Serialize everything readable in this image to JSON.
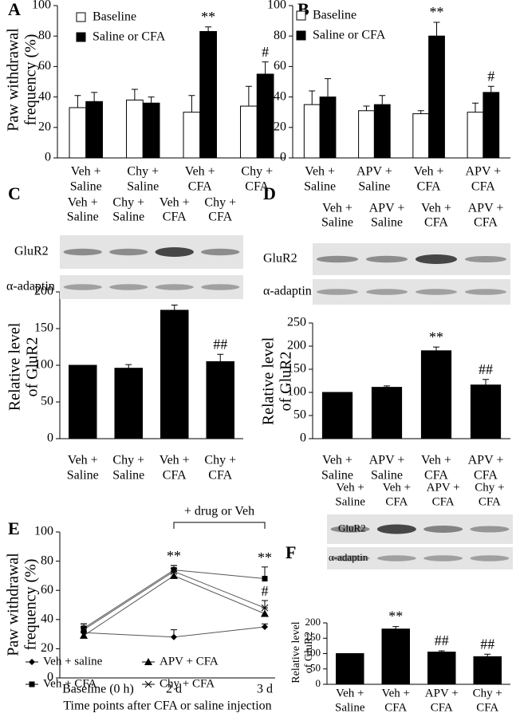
{
  "chart_data": [
    {
      "panel": "A",
      "type": "bar",
      "categories": [
        [
          "Veh +",
          "Saline"
        ],
        [
          "Chy +",
          "Saline"
        ],
        [
          "Veh +",
          "CFA"
        ],
        [
          "Chy +",
          "CFA"
        ]
      ],
      "y_label": [
        "Paw withdrawal",
        "frequency (%)"
      ],
      "ylim": [
        0,
        100
      ],
      "yticks": [
        0,
        20,
        40,
        60,
        80,
        100
      ],
      "series": [
        {
          "name": "Baseline",
          "color": "#ffffff",
          "values": [
            33,
            38,
            30,
            34
          ],
          "errors": [
            8,
            7,
            11,
            13
          ]
        },
        {
          "name": "Saline or CFA",
          "color": "#000000",
          "values": [
            37,
            36,
            83,
            55
          ],
          "errors": [
            6,
            4,
            3,
            8
          ],
          "annotations": [
            null,
            null,
            "**",
            "#"
          ]
        }
      ]
    },
    {
      "panel": "B",
      "type": "bar",
      "categories": [
        [
          "Veh +",
          "Saline"
        ],
        [
          "APV +",
          "Saline"
        ],
        [
          "Veh +",
          "CFA"
        ],
        [
          "APV +",
          "CFA"
        ]
      ],
      "ylim": [
        0,
        100
      ],
      "yticks": [
        0,
        20,
        40,
        60,
        80,
        100
      ],
      "series": [
        {
          "name": "Baseline",
          "color": "#ffffff",
          "values": [
            35,
            31,
            29,
            30
          ],
          "errors": [
            9,
            3,
            2,
            6
          ]
        },
        {
          "name": "Saline or CFA",
          "color": "#000000",
          "values": [
            40,
            35,
            80,
            43
          ],
          "errors": [
            12,
            6,
            9,
            4
          ],
          "annotations": [
            null,
            null,
            "**",
            "#"
          ]
        }
      ]
    },
    {
      "panel": "C",
      "type": "bar",
      "blot_rows": [
        "GluR2",
        "α-adaptin"
      ],
      "categories": [
        [
          "Veh +",
          "Saline"
        ],
        [
          "Chy +",
          "Saline"
        ],
        [
          "Veh +",
          "CFA"
        ],
        [
          "Chy +",
          "CFA"
        ]
      ],
      "y_label": [
        "Relative level",
        "of GluR2"
      ],
      "ylim": [
        0,
        200
      ],
      "yticks": [
        0,
        50,
        100,
        150,
        200
      ],
      "series": [
        {
          "color": "#000000",
          "values": [
            100,
            96,
            175,
            105
          ],
          "errors": [
            0,
            5,
            7,
            10
          ],
          "annotations": [
            null,
            null,
            "**",
            "##"
          ]
        }
      ]
    },
    {
      "panel": "D",
      "type": "bar",
      "blot_rows": [
        "GluR2",
        "α-adaptin"
      ],
      "categories": [
        [
          "Veh +",
          "Saline"
        ],
        [
          "APV +",
          "Saline"
        ],
        [
          "Veh +",
          "CFA"
        ],
        [
          "APV +",
          "CFA"
        ]
      ],
      "y_label": [
        "Relative level",
        "of GluR2"
      ],
      "ylim": [
        0,
        250
      ],
      "yticks": [
        0,
        50,
        100,
        150,
        200,
        250
      ],
      "series": [
        {
          "color": "#000000",
          "values": [
            100,
            111,
            190,
            116
          ],
          "errors": [
            0,
            3,
            8,
            12
          ],
          "annotations": [
            null,
            null,
            "**",
            "##"
          ]
        }
      ]
    },
    {
      "panel": "E",
      "type": "line",
      "categories": [
        "Baseline (0 h)",
        "2 d",
        "3 d"
      ],
      "x_label": "Time points after CFA or saline injection",
      "y_label": [
        "Paw withdrawal",
        "frequency (%)"
      ],
      "annotation": "+ drug or Veh",
      "ylim": [
        0,
        100
      ],
      "yticks": [
        0,
        20,
        40,
        60,
        80,
        100
      ],
      "series": [
        {
          "name": "Veh + saline",
          "color": "#000000",
          "marker": "diamond",
          "values": [
            31,
            28,
            35
          ],
          "errors": [
            3,
            5,
            2
          ]
        },
        {
          "name": "Veh + CFA",
          "color": "#000000",
          "marker": "square",
          "values": [
            34,
            74,
            68
          ],
          "errors": [
            3,
            3,
            8
          ],
          "annotations": [
            null,
            "**",
            "**"
          ]
        },
        {
          "name": "APV + CFA",
          "color": "#000000",
          "marker": "triangle",
          "values": [
            29,
            70,
            44
          ],
          "errors": [
            3,
            3,
            4
          ]
        },
        {
          "name": "Chy + CFA",
          "color": "#000000",
          "marker": "x",
          "values": [
            33,
            73,
            48
          ],
          "errors": [
            4,
            4,
            5
          ],
          "annotations": [
            null,
            null,
            "#"
          ]
        }
      ]
    },
    {
      "panel": "F",
      "type": "bar",
      "blot_rows": [
        "GluR2",
        "α-adaptin"
      ],
      "categories": [
        [
          "Veh +",
          "Saline"
        ],
        [
          "Veh +",
          "CFA"
        ],
        [
          "APV +",
          "CFA"
        ],
        [
          "Chy +",
          "CFA"
        ]
      ],
      "y_label": [
        "Relative level",
        "of GluR2"
      ],
      "ylim": [
        0,
        200
      ],
      "yticks": [
        0,
        50,
        100,
        150,
        200
      ],
      "series": [
        {
          "color": "#000000",
          "values": [
            100,
            180,
            105,
            90
          ],
          "errors": [
            0,
            8,
            4,
            8
          ],
          "annotations": [
            null,
            "**",
            "##",
            "##"
          ]
        }
      ]
    }
  ]
}
